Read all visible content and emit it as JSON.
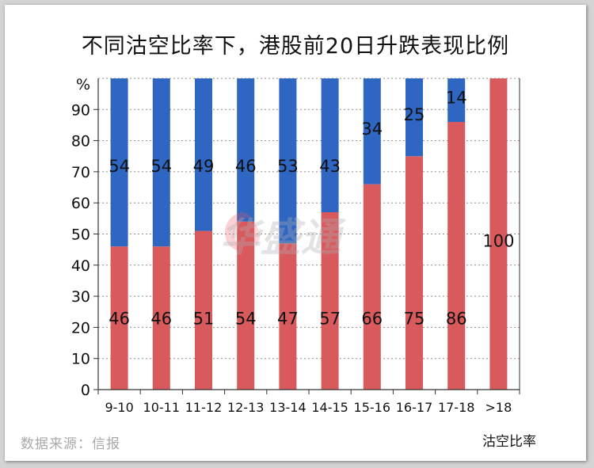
{
  "title": "不同沽空比率下，港股前20日升跌表现比例",
  "source": "数据来源：信报",
  "watermark": "华盛通",
  "chart_data": {
    "type": "bar",
    "stacked": true,
    "title": "不同沽空比率下，港股前20日升跌表现比例",
    "xlabel": "沽空比率",
    "ylabel": "%",
    "ylim": [
      0,
      100
    ],
    "yticks": [
      0,
      10,
      20,
      30,
      40,
      50,
      60,
      70,
      80,
      90
    ],
    "grid": true,
    "categories": [
      "9-10",
      "10-11",
      "11-12",
      "12-13",
      "13-14",
      "14-15",
      "15-16",
      "16-17",
      "17-18",
      ">18"
    ],
    "series": [
      {
        "values": [
          46,
          46,
          51,
          54,
          47,
          57,
          66,
          75,
          86,
          100
        ],
        "color": "#d95a5d"
      },
      {
        "values": [
          54,
          54,
          49,
          46,
          53,
          43,
          34,
          25,
          14,
          0
        ],
        "color": "#2f66c2"
      }
    ]
  }
}
